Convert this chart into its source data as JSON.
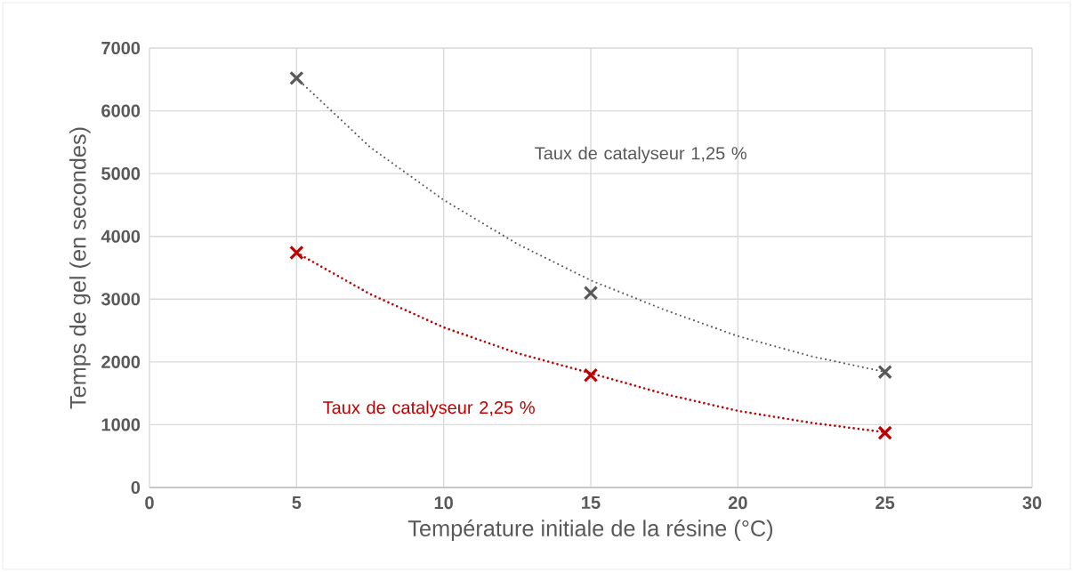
{
  "chart_data": {
    "type": "scatter",
    "xlabel": "Température initiale de la résine (°C)",
    "ylabel": "Temps de gel (en secondes)",
    "xlim": [
      0,
      30
    ],
    "xticks": [
      0,
      5,
      10,
      15,
      20,
      25,
      30
    ],
    "ylim": [
      0,
      7000
    ],
    "yticks": [
      0,
      1000,
      2000,
      3000,
      4000,
      5000,
      6000,
      7000
    ],
    "grid": true,
    "marker": "cross",
    "series": [
      {
        "name": "Taux de catalyseur 1,25 %",
        "color": "#595959",
        "x": [
          5,
          15,
          25
        ],
        "values": [
          6520,
          3100,
          1840
        ]
      },
      {
        "name": "Taux de catalyseur 2,25 %",
        "color": "#c00000",
        "x": [
          5,
          15,
          25
        ],
        "values": [
          3740,
          1790,
          870
        ]
      },
      {
        "type": "line",
        "color": "#595959",
        "marker": "none",
        "line_style": "dotted",
        "x": [
          5,
          7.5,
          10,
          12.5,
          15,
          17.5,
          20,
          22.5,
          25
        ],
        "values": [
          6520,
          5420,
          4580,
          3880,
          3300,
          2830,
          2410,
          2090,
          1840
        ]
      },
      {
        "type": "line",
        "color": "#c00000",
        "marker": "none",
        "line_style": "dotted",
        "x": [
          5,
          7.5,
          10,
          12.5,
          15,
          17.5,
          20,
          22.5,
          25
        ],
        "values": [
          3740,
          3080,
          2550,
          2140,
          1820,
          1490,
          1220,
          1030,
          880
        ]
      }
    ]
  }
}
